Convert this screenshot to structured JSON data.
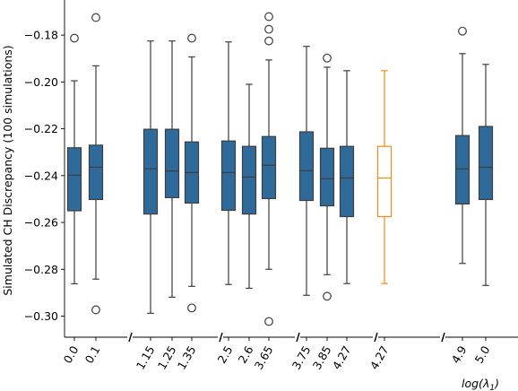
{
  "chart_data": {
    "type": "box",
    "ylabel": "Simulated CH Discrepancy (100 simulations)",
    "xlabel": "log(λ₁)",
    "xlabel_parts": {
      "base": "log(",
      "sym": "λ",
      "sub": "1",
      "close": ")"
    },
    "ylim": [
      -0.309,
      -0.165
    ],
    "yticks": [
      -0.18,
      -0.2,
      -0.22,
      -0.24,
      -0.26,
      -0.28,
      -0.3
    ],
    "ytick_labels": [
      "−0.18",
      "−0.20",
      "−0.22",
      "−0.24",
      "−0.26",
      "−0.28",
      "−0.30"
    ],
    "grid": false,
    "colors": {
      "box": "#2f6b9a",
      "highlight_box": "#ffffff",
      "highlight_edge": "#f08c1e",
      "line": "#3d3d3d",
      "outlier": "#3d3d3d"
    },
    "boxes": [
      {
        "label": "0.0",
        "q1": -0.255,
        "median": -0.2398,
        "q3": -0.2281,
        "whislo": -0.2862,
        "whishi": -0.1995,
        "fliers": [
          -0.1813
        ],
        "highlight": false
      },
      {
        "label": "0.1",
        "q1": -0.2502,
        "median": -0.2364,
        "q3": -0.227,
        "whislo": -0.2842,
        "whishi": -0.1931,
        "fliers": [
          -0.1725,
          -0.2973
        ],
        "highlight": false
      },
      {
        "label": "1.15",
        "q1": -0.2564,
        "median": -0.2371,
        "q3": -0.2202,
        "whislo": -0.2988,
        "whishi": -0.1825,
        "fliers": [],
        "highlight": false
      },
      {
        "label": "1.25",
        "q1": -0.2494,
        "median": -0.238,
        "q3": -0.2202,
        "whislo": -0.2919,
        "whishi": -0.1825,
        "fliers": [],
        "highlight": false
      },
      {
        "label": "1.35",
        "q1": -0.2517,
        "median": -0.2387,
        "q3": -0.2256,
        "whislo": -0.2873,
        "whishi": -0.1893,
        "fliers": [
          -0.1813,
          -0.2965
        ],
        "highlight": false
      },
      {
        "label": "2.5",
        "q1": -0.2548,
        "median": -0.2387,
        "q3": -0.2252,
        "whislo": -0.2865,
        "whishi": -0.1829,
        "fliers": [],
        "highlight": false
      },
      {
        "label": "2.6",
        "q1": -0.2564,
        "median": -0.2406,
        "q3": -0.2275,
        "whislo": -0.2881,
        "whishi": -0.201,
        "fliers": [],
        "highlight": false
      },
      {
        "label": "3.65",
        "q1": -0.2498,
        "median": -0.2356,
        "q3": -0.2233,
        "whislo": -0.28,
        "whishi": -0.1906,
        "fliers": [
          -0.1721,
          -0.1775,
          -0.1825,
          -0.3023
        ],
        "highlight": false
      },
      {
        "label": "3.75",
        "q1": -0.2506,
        "median": -0.2379,
        "q3": -0.2213,
        "whislo": -0.2911,
        "whishi": -0.1848,
        "fliers": [],
        "highlight": false
      },
      {
        "label": "3.85",
        "q1": -0.2529,
        "median": -0.2413,
        "q3": -0.2283,
        "whislo": -0.2823,
        "whishi": -0.1937,
        "fliers": [
          -0.1898,
          -0.2915
        ],
        "highlight": false
      },
      {
        "label": "4.27",
        "q1": -0.2575,
        "median": -0.241,
        "q3": -0.2275,
        "whislo": -0.2861,
        "whishi": -0.1952,
        "fliers": [],
        "highlight": false
      },
      {
        "label": "4.27",
        "q1": -0.2575,
        "median": -0.241,
        "q3": -0.2275,
        "whislo": -0.2861,
        "whishi": -0.1952,
        "fliers": [],
        "highlight": true
      },
      {
        "label": "4.9",
        "q1": -0.2521,
        "median": -0.2371,
        "q3": -0.2229,
        "whislo": -0.2775,
        "whishi": -0.1879,
        "fliers": [
          -0.1783
        ],
        "highlight": false
      },
      {
        "label": "5.0",
        "q1": -0.2502,
        "median": -0.2364,
        "q3": -0.219,
        "whislo": -0.2869,
        "whishi": -0.1925,
        "fliers": [],
        "highlight": false
      }
    ]
  }
}
